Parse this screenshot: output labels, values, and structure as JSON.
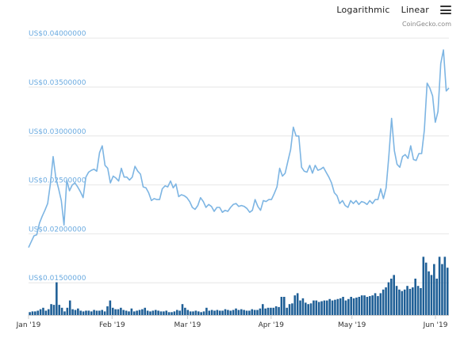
{
  "toolbar": {
    "logarithmic_label": "Logarithmic",
    "linear_label": "Linear",
    "menu_icon": "hamburger-menu-icon"
  },
  "credit": "CoinGecko.com",
  "colors": {
    "price_line": "#7db5e3",
    "volume_bar": "#1f5f96",
    "grid": "#e6e6e6",
    "ytick": "#6aaae0"
  },
  "chart_data": {
    "type": "line",
    "title": "",
    "xlabel": "",
    "ylabel": "",
    "ylim": [
      0.0117,
      0.0405
    ],
    "y_ticks": [
      {
        "value": 0.04,
        "label": "US$0.04000000"
      },
      {
        "value": 0.035,
        "label": "US$0.03500000"
      },
      {
        "value": 0.03,
        "label": "US$0.03000000"
      },
      {
        "value": 0.025,
        "label": "US$0.02500000"
      },
      {
        "value": 0.02,
        "label": "US$0.02000000"
      },
      {
        "value": 0.015,
        "label": "US$0.01500000"
      }
    ],
    "x_ticks": [
      {
        "day": 0,
        "label": "Jan '19"
      },
      {
        "day": 31,
        "label": "Feb '19"
      },
      {
        "day": 59,
        "label": "Mar '19"
      },
      {
        "day": 90,
        "label": "Apr '19"
      },
      {
        "day": 120,
        "label": "May '19"
      },
      {
        "day": 151,
        "label": "Jun '19"
      }
    ],
    "x_range_days": [
      0,
      156
    ],
    "grid": true,
    "series": [
      {
        "type": "line",
        "values": [
          0.0186,
          0.0192,
          0.0198,
          0.0199,
          0.0211,
          0.0218,
          0.0224,
          0.0231,
          0.0251,
          0.0279,
          0.0257,
          0.0246,
          0.0234,
          0.0209,
          0.0255,
          0.0244,
          0.025,
          0.0252,
          0.0248,
          0.0243,
          0.0237,
          0.0258,
          0.0263,
          0.0265,
          0.0266,
          0.0264,
          0.0283,
          0.029,
          0.027,
          0.0267,
          0.0252,
          0.0259,
          0.0257,
          0.0254,
          0.0267,
          0.0258,
          0.0258,
          0.0255,
          0.0258,
          0.0269,
          0.0264,
          0.0261,
          0.0248,
          0.0247,
          0.0242,
          0.0234,
          0.0236,
          0.0235,
          0.0235,
          0.0246,
          0.0249,
          0.0248,
          0.0254,
          0.0247,
          0.0251,
          0.0238,
          0.024,
          0.0239,
          0.0237,
          0.0233,
          0.0227,
          0.0225,
          0.0229,
          0.0237,
          0.0233,
          0.0227,
          0.023,
          0.0228,
          0.0223,
          0.0227,
          0.0227,
          0.0222,
          0.0224,
          0.0223,
          0.0227,
          0.023,
          0.0231,
          0.0228,
          0.0229,
          0.0228,
          0.0226,
          0.0222,
          0.0224,
          0.0235,
          0.0228,
          0.0224,
          0.0234,
          0.0233,
          0.0235,
          0.0235,
          0.0241,
          0.0248,
          0.0267,
          0.0259,
          0.0262,
          0.0274,
          0.0286,
          0.0309,
          0.03,
          0.03,
          0.0268,
          0.0264,
          0.0263,
          0.027,
          0.0262,
          0.027,
          0.0265,
          0.0266,
          0.0268,
          0.0263,
          0.0258,
          0.0252,
          0.0242,
          0.0239,
          0.0231,
          0.0234,
          0.0229,
          0.0227,
          0.0234,
          0.0231,
          0.0234,
          0.023,
          0.0233,
          0.0232,
          0.023,
          0.0234,
          0.0231,
          0.0235,
          0.0235,
          0.0246,
          0.0236,
          0.0247,
          0.028,
          0.0318,
          0.0285,
          0.0271,
          0.0268,
          0.0279,
          0.0281,
          0.0277,
          0.029,
          0.0276,
          0.0275,
          0.0282,
          0.0282,
          0.0306,
          0.0354,
          0.0349,
          0.0341,
          0.0314,
          0.0325,
          0.0374,
          0.0388,
          0.0346,
          0.0349
        ]
      },
      {
        "type": "bar",
        "name": "",
        "y_relative_max": 1.0,
        "values": [
          0.04,
          0.05,
          0.05,
          0.06,
          0.08,
          0.1,
          0.06,
          0.08,
          0.15,
          0.14,
          0.45,
          0.14,
          0.1,
          0.05,
          0.1,
          0.2,
          0.08,
          0.07,
          0.09,
          0.06,
          0.05,
          0.06,
          0.06,
          0.05,
          0.07,
          0.06,
          0.06,
          0.07,
          0.05,
          0.12,
          0.2,
          0.1,
          0.08,
          0.08,
          0.1,
          0.07,
          0.06,
          0.05,
          0.09,
          0.05,
          0.06,
          0.07,
          0.08,
          0.1,
          0.06,
          0.05,
          0.06,
          0.07,
          0.06,
          0.05,
          0.05,
          0.06,
          0.04,
          0.04,
          0.05,
          0.07,
          0.06,
          0.15,
          0.1,
          0.07,
          0.05,
          0.05,
          0.06,
          0.05,
          0.04,
          0.05,
          0.1,
          0.06,
          0.07,
          0.06,
          0.07,
          0.06,
          0.06,
          0.08,
          0.07,
          0.06,
          0.07,
          0.09,
          0.07,
          0.08,
          0.07,
          0.06,
          0.06,
          0.08,
          0.07,
          0.07,
          0.09,
          0.15,
          0.09,
          0.1,
          0.1,
          0.1,
          0.12,
          0.11,
          0.25,
          0.25,
          0.1,
          0.15,
          0.16,
          0.27,
          0.3,
          0.2,
          0.23,
          0.17,
          0.15,
          0.16,
          0.2,
          0.2,
          0.18,
          0.19,
          0.2,
          0.2,
          0.22,
          0.2,
          0.21,
          0.22,
          0.23,
          0.25,
          0.2,
          0.22,
          0.25,
          0.23,
          0.24,
          0.25,
          0.27,
          0.27,
          0.25,
          0.26,
          0.27,
          0.3,
          0.26,
          0.3,
          0.35,
          0.38,
          0.45,
          0.5,
          0.55,
          0.4,
          0.35,
          0.33,
          0.35,
          0.4,
          0.36,
          0.38,
          0.5,
          0.4,
          0.37,
          0.8,
          0.72,
          0.6,
          0.55,
          0.7,
          0.5,
          0.8,
          0.7,
          0.8,
          0.65
        ]
      }
    ]
  }
}
